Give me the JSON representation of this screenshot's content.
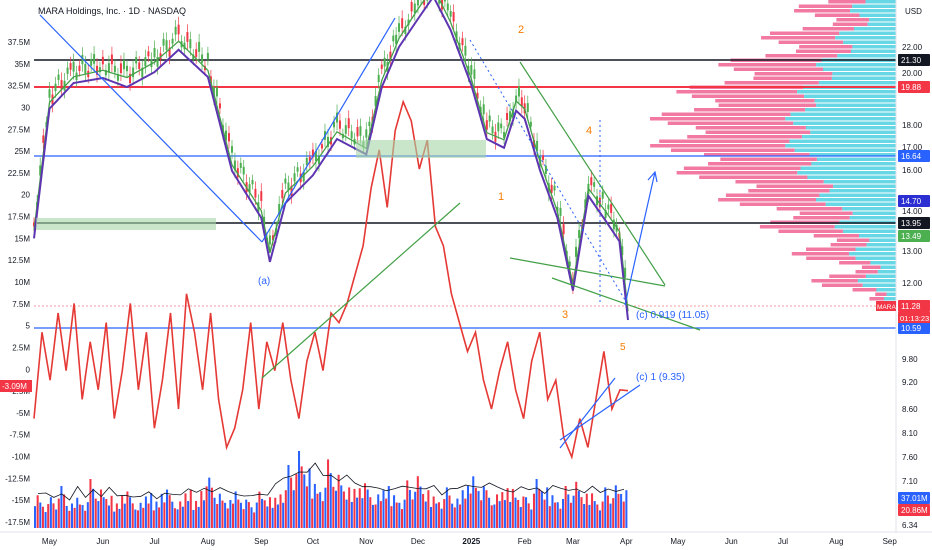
{
  "title": "MARA Holdings, Inc. · 1D · NASDAQ",
  "currency": "USD",
  "countdown": "01:13:23",
  "ticker": "MARA",
  "chart_data": {
    "type": "line",
    "x_ticks": [
      "May",
      "Jun",
      "Jul",
      "Aug",
      "Sep",
      "Oct",
      "Nov",
      "Dec",
      "2025",
      "Feb",
      "Mar",
      "Apr",
      "May",
      "Jun",
      "Jul",
      "Aug",
      "Sep"
    ],
    "right_axis": {
      "unit": "USD",
      "ticks": [
        "22.00",
        "21.30",
        "20.00",
        "19.88",
        "18.00",
        "17.00",
        "16.64",
        "16.00",
        "14.70",
        "14.00",
        "13.95",
        "13.49",
        "13.00",
        "12.00",
        "11.28",
        "10.59",
        "9.80",
        "9.20",
        "8.60",
        "8.10",
        "7.60",
        "7.10",
        "6.34"
      ],
      "price_labels": [
        {
          "value": "21.30",
          "color": "#131722"
        },
        {
          "value": "19.88",
          "color": "#f23645"
        },
        {
          "value": "16.64",
          "color": "#2962ff"
        },
        {
          "value": "14.70",
          "color": "#2b2fd1"
        },
        {
          "value": "13.95",
          "color": "#131722"
        },
        {
          "value": "13.49",
          "color": "#4caf50"
        },
        {
          "value": "11.28",
          "color": "#f23645"
        },
        {
          "value": "10.59",
          "color": "#2962ff"
        },
        {
          "value": "37.01M",
          "color": "#2962ff"
        },
        {
          "value": "20.86M",
          "color": "#f23645"
        }
      ]
    },
    "left_axis": {
      "ticks": [
        "37.5M",
        "35M",
        "32.5M",
        "30",
        "27.5M",
        "25M",
        "22.5M",
        "20",
        "17.5M",
        "15M",
        "12.5M",
        "10M",
        "7.5M",
        "5",
        "2.5M",
        "0",
        "-2.5M",
        "-5M",
        "-7.5M",
        "-10M",
        "-12.5M",
        "-15M",
        "-17.5M"
      ],
      "current_value": "-3.09M"
    },
    "annotations": [
      {
        "text": "(a)",
        "color": "#2962ff"
      },
      {
        "text": "1",
        "color": "#f57c00"
      },
      {
        "text": "2",
        "color": "#f57c00"
      },
      {
        "text": "3",
        "color": "#f57c00"
      },
      {
        "text": "4",
        "color": "#f57c00"
      },
      {
        "text": "5",
        "color": "#f57c00"
      },
      {
        "text": "(c) 0.919 (11.05)",
        "color": "#2962ff"
      },
      {
        "text": "(c) 1 (9.35)",
        "color": "#2962ff"
      }
    ],
    "price_series": {
      "name": "MARA",
      "dates": [
        "2024-04-22",
        "2024-05-01",
        "2024-05-15",
        "2024-06-01",
        "2024-06-15",
        "2024-07-01",
        "2024-07-15",
        "2024-08-01",
        "2024-08-15",
        "2024-09-01",
        "2024-09-06",
        "2024-09-15",
        "2024-10-01",
        "2024-10-15",
        "2024-11-01",
        "2024-11-10",
        "2024-11-20",
        "2024-12-01",
        "2024-12-10",
        "2024-12-20",
        "2025-01-01",
        "2025-01-10",
        "2025-01-20",
        "2025-01-27",
        "2025-02-01",
        "2025-02-10",
        "2025-02-20",
        "2025-03-01",
        "2025-03-10",
        "2025-03-20",
        "2025-03-28",
        "2025-04-02"
      ],
      "values": [
        13.9,
        19.5,
        20.4,
        20.9,
        20.0,
        21.4,
        22.8,
        21.0,
        16.6,
        14.5,
        13.1,
        15.2,
        16.4,
        18.0,
        17.3,
        20.0,
        23.0,
        25.0,
        26.6,
        24.2,
        20.2,
        18.0,
        17.6,
        19.4,
        19.0,
        16.6,
        14.5,
        12.2,
        15.5,
        14.3,
        13.8,
        11.28
      ]
    },
    "oscillator_series": {
      "x_range": [
        "2024-04-22",
        "2025-04-02"
      ],
      "values": [
        -6,
        3,
        -2,
        5,
        -1,
        6,
        -4,
        2,
        -3,
        4,
        -6,
        -1,
        6,
        -3,
        3,
        -7,
        -2,
        5,
        -5,
        7,
        3,
        -3,
        5,
        -4,
        -9,
        -7,
        -3,
        4,
        -5,
        2,
        -1,
        4,
        -2,
        -6,
        0,
        3,
        -1,
        5,
        4,
        6,
        9,
        12,
        18,
        22,
        16,
        24,
        27,
        25,
        20,
        23,
        14,
        12,
        7,
        4,
        1,
        3,
        -2,
        -5,
        -1,
        2,
        -3,
        -6,
        0,
        3,
        -4,
        -2,
        -8,
        -10,
        -6,
        -9,
        -4,
        1,
        -5,
        -3,
        -3.09
      ]
    },
    "volume_series": {
      "x_range": [
        "2024-04-22",
        "2025-04-02"
      ],
      "values": [
        52,
        38,
        44,
        60,
        35,
        48,
        41,
        70,
        55,
        46,
        39,
        58,
        44,
        36,
        50,
        42,
        61,
        47,
        38,
        55,
        43,
        66,
        72,
        49,
        40,
        58,
        45,
        37,
        52,
        44,
        48,
        60,
        90,
        110,
        85,
        70,
        64,
        98,
        76,
        58,
        62,
        71,
        55,
        48,
        60,
        52,
        45,
        68,
        74,
        54,
        50,
        46,
        58,
        42,
        60,
        82,
        66,
        54,
        48,
        57,
        62,
        50,
        44,
        70,
        58,
        52,
        46,
        60,
        66,
        49,
        55,
        42,
        58,
        61,
        54
      ],
      "colors_bias": "mixed"
    }
  }
}
